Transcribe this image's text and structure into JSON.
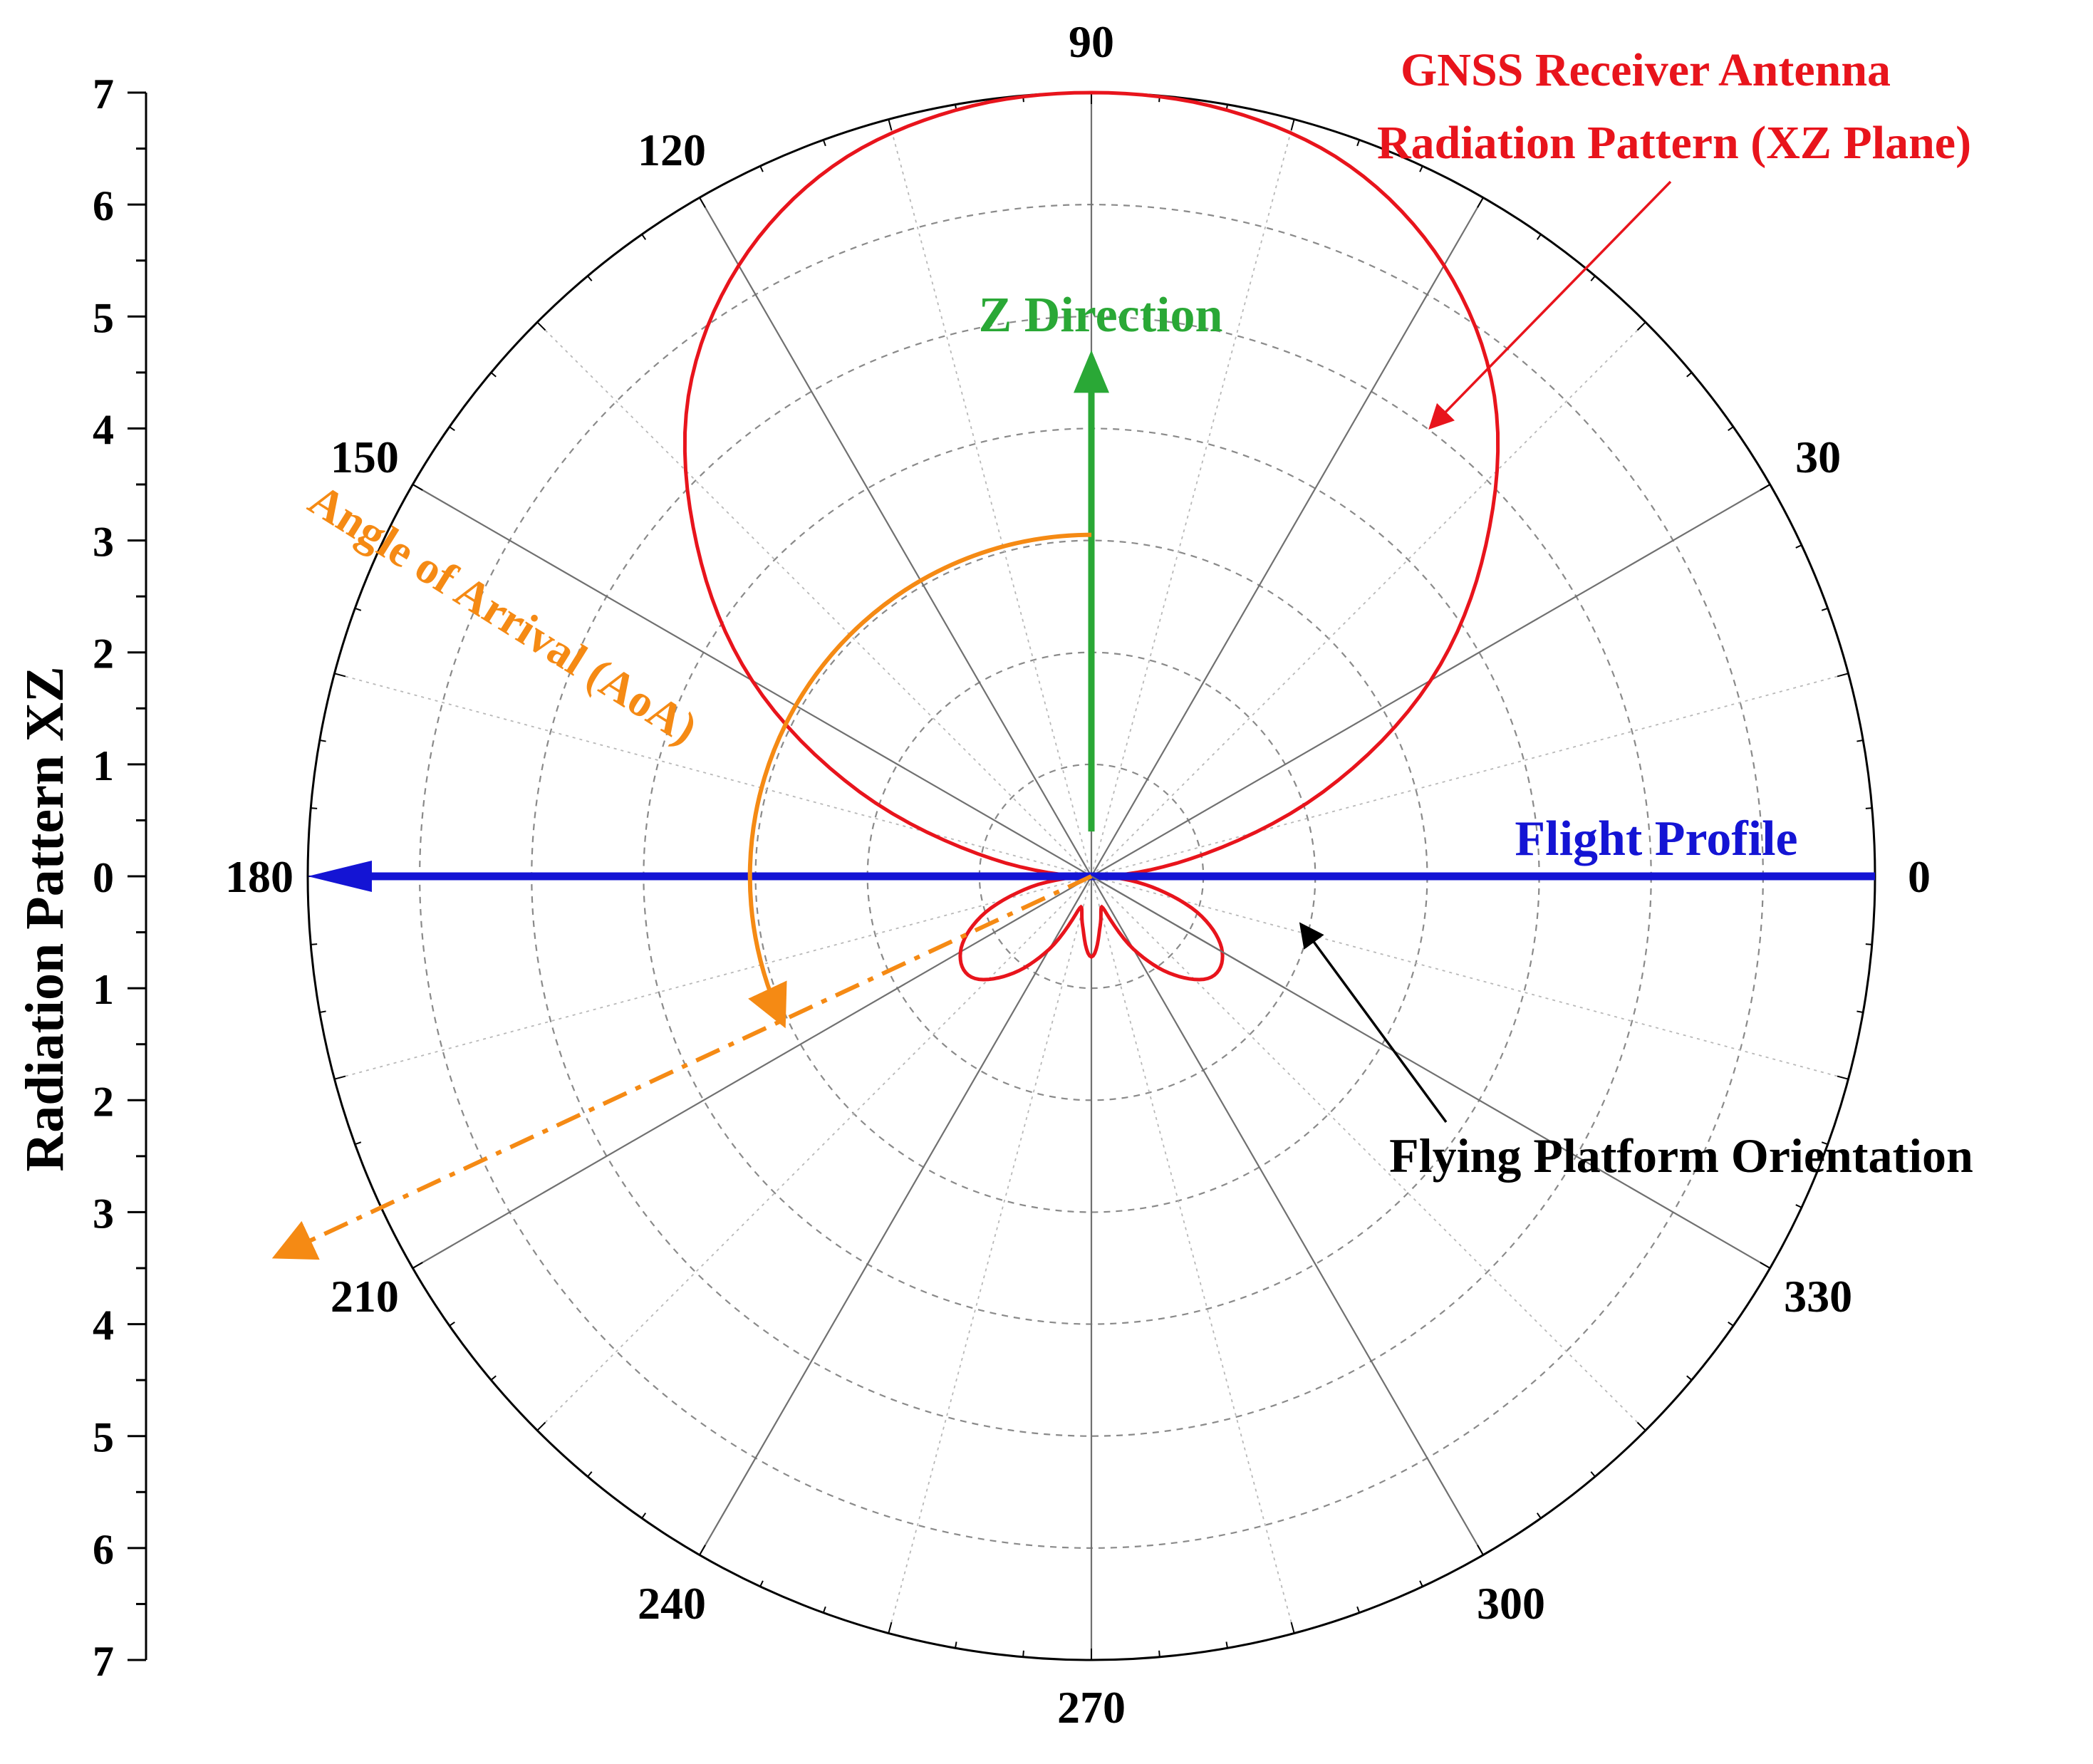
{
  "chart_data": {
    "type": "polar",
    "title": "",
    "radial_axis": {
      "label": "Radiation Pattern XZ",
      "range": [
        0,
        7
      ],
      "major_step": 1,
      "minor_step": 0.5,
      "upper_tick_labels": [
        "7",
        "6",
        "5",
        "4",
        "3",
        "2",
        "1",
        "0"
      ],
      "lower_tick_labels": [
        "1",
        "2",
        "3",
        "4",
        "5",
        "6",
        "7"
      ]
    },
    "angular_axis": {
      "unit": "degrees",
      "major_spoke_step": 30,
      "minor_spoke_step": 15,
      "tick_labels": [
        "0",
        "30",
        "90",
        "120",
        "150",
        "180",
        "210",
        "240",
        "270",
        "300",
        "330"
      ],
      "tick_angles": [
        0,
        30,
        90,
        120,
        150,
        180,
        210,
        240,
        270,
        300,
        330
      ]
    },
    "grid": true,
    "series": [
      {
        "name": "GNSS Receiver Antenna Radiation Pattern (XZ Plane)",
        "kind": "radiation pattern",
        "color": "#e8141c",
        "points": [
          {
            "angle": 0,
            "r": 0.1
          },
          {
            "angle": 10,
            "r": 0.9
          },
          {
            "angle": 20,
            "r": 2.2
          },
          {
            "angle": 30,
            "r": 3.5
          },
          {
            "angle": 40,
            "r": 4.6
          },
          {
            "angle": 50,
            "r": 5.6
          },
          {
            "angle": 60,
            "r": 6.3
          },
          {
            "angle": 70,
            "r": 6.75
          },
          {
            "angle": 80,
            "r": 6.95
          },
          {
            "angle": 90,
            "r": 7.0
          },
          {
            "angle": 100,
            "r": 6.95
          },
          {
            "angle": 110,
            "r": 6.75
          },
          {
            "angle": 120,
            "r": 6.3
          },
          {
            "angle": 130,
            "r": 5.6
          },
          {
            "angle": 140,
            "r": 4.6
          },
          {
            "angle": 150,
            "r": 3.5
          },
          {
            "angle": 160,
            "r": 2.2
          },
          {
            "angle": 170,
            "r": 0.9
          },
          {
            "angle": 180,
            "r": 0.1
          },
          {
            "angle": 190,
            "r": 0.55
          },
          {
            "angle": 200,
            "r": 1.05
          },
          {
            "angle": 210,
            "r": 1.35
          },
          {
            "angle": 220,
            "r": 1.4
          },
          {
            "angle": 230,
            "r": 1.15
          },
          {
            "angle": 240,
            "r": 0.75
          },
          {
            "angle": 250,
            "r": 0.3
          },
          {
            "angle": 260,
            "r": 0.45
          },
          {
            "angle": 270,
            "r": 0.72
          },
          {
            "angle": 280,
            "r": 0.45
          },
          {
            "angle": 290,
            "r": 0.3
          },
          {
            "angle": 300,
            "r": 0.75
          },
          {
            "angle": 310,
            "r": 1.15
          },
          {
            "angle": 320,
            "r": 1.4
          },
          {
            "angle": 330,
            "r": 1.35
          },
          {
            "angle": 340,
            "r": 1.05
          },
          {
            "angle": 350,
            "r": 0.55
          },
          {
            "angle": 360,
            "r": 0.1
          }
        ]
      },
      {
        "name": "Z Direction",
        "kind": "arrow",
        "color": "#2aa836",
        "angle": 90,
        "r_from": 0.4,
        "r_to": 4.7
      },
      {
        "name": "Flight Profile",
        "kind": "double arrow",
        "color": "#1414d4",
        "angle_from": 0,
        "angle_to": 180,
        "r": 7.0
      },
      {
        "name": "Flying Platform Orientation",
        "kind": "line",
        "color": "#000000",
        "angle": 330,
        "r_from": 0,
        "r_to": 2.0
      },
      {
        "name": "Angle of Arrival (AoA)",
        "kind": "arc with dash-dot ray",
        "color": "#f58a14",
        "arc_radius": 3.05,
        "arc_from_angle": 90,
        "arc_to_angle": 205,
        "ray_angle": 205,
        "ray_r_to": 8.0
      }
    ],
    "annotations": [
      {
        "text_line1": "GNSS Receiver Antenna",
        "text_line2": "Radiation Pattern (XZ Plane)",
        "color": "#e8141c"
      },
      {
        "text": "Z Direction",
        "color": "#2aa836"
      },
      {
        "text": "Flight Profile",
        "color": "#1414d4"
      },
      {
        "text": "Flying Platform Orientation",
        "color": "#000000"
      },
      {
        "text": "Angle of Arrival (AoA)",
        "color": "#f58a14"
      }
    ]
  }
}
